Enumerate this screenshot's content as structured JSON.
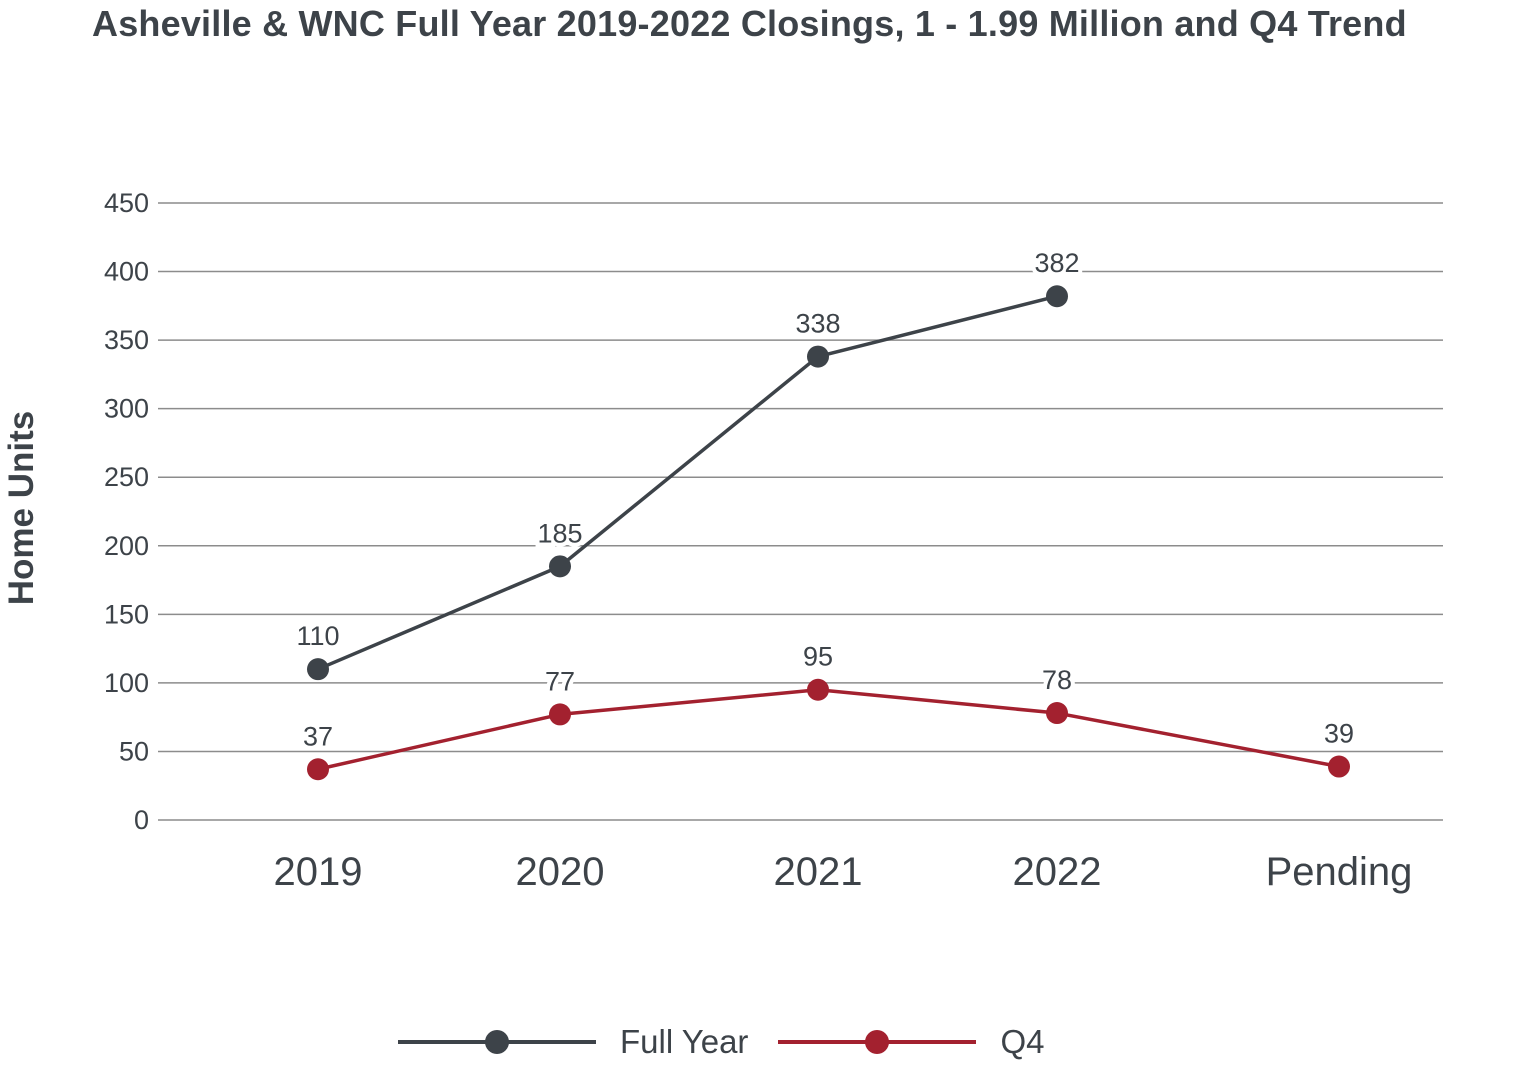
{
  "chart_data": {
    "type": "line",
    "title": "Asheville & WNC Full Year 2019-2022 Closings, 1 - 1.99 Million and Q4 Trend",
    "xlabel": "",
    "ylabel": "Home Units",
    "categories": [
      "2019",
      "2020",
      "2021",
      "2022",
      "Pending"
    ],
    "ylim": [
      0,
      450
    ],
    "yticks": [
      0,
      50,
      100,
      150,
      200,
      250,
      300,
      350,
      400,
      450
    ],
    "grid": true,
    "legend_position": "bottom",
    "series": [
      {
        "name": "Full Year",
        "color": "#3d4349",
        "values": [
          110,
          185,
          338,
          382,
          null
        ],
        "labels": [
          "110",
          "185",
          "338",
          "382",
          ""
        ]
      },
      {
        "name": "Q4",
        "color": "#a3212f",
        "values": [
          37,
          77,
          95,
          78,
          39
        ],
        "labels": [
          "37",
          "77",
          "95",
          "78",
          "39"
        ]
      }
    ]
  }
}
